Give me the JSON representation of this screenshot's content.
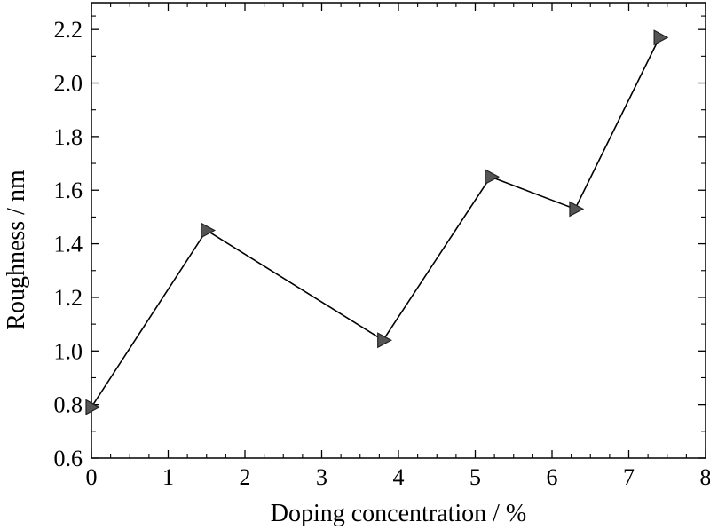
{
  "chart_data": {
    "type": "line",
    "title": "",
    "xlabel": "Doping concentration / %",
    "ylabel": "Roughness / nm",
    "xlim": [
      0,
      8
    ],
    "ylim": [
      0.6,
      2.3
    ],
    "x_ticks": [
      0,
      1,
      2,
      3,
      4,
      5,
      6,
      7,
      8
    ],
    "x_tick_labels": [
      "0",
      "1",
      "2",
      "3",
      "4",
      "5",
      "6",
      "7",
      "8"
    ],
    "y_ticks": [
      0.6,
      0.8,
      1.0,
      1.2,
      1.4,
      1.6,
      1.8,
      2.0,
      2.2
    ],
    "y_tick_labels": [
      "0.6",
      "0.8",
      "1.0",
      "1.2",
      "1.4",
      "1.6",
      "1.8",
      "2.0",
      "2.2"
    ],
    "grid": false,
    "legend": "none",
    "series": [
      {
        "marker": "right-triangle",
        "color": "#000000",
        "marker_fill": "#555555",
        "x": [
          0,
          1.5,
          3.8,
          5.2,
          6.3,
          7.4
        ],
        "y": [
          0.79,
          1.45,
          1.04,
          1.65,
          1.53,
          2.17
        ]
      }
    ]
  }
}
